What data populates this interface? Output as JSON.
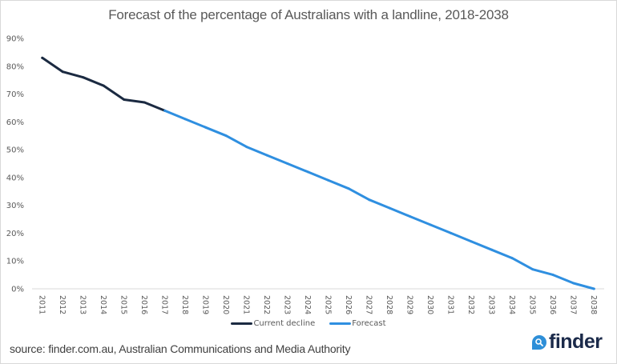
{
  "chart_data": {
    "type": "line",
    "title": "Forecast of the percentage of Australians with a landline, 2018-2038",
    "xlabel": "",
    "ylabel": "",
    "ylim": [
      0,
      90
    ],
    "yticks": [
      "0%",
      "10%",
      "20%",
      "30%",
      "40%",
      "50%",
      "60%",
      "70%",
      "80%",
      "90%"
    ],
    "ytick_values": [
      0,
      10,
      20,
      30,
      40,
      50,
      60,
      70,
      80,
      90
    ],
    "categories": [
      "2011",
      "2012",
      "2013",
      "2014",
      "2015",
      "2016",
      "2017",
      "2018",
      "2019",
      "2020",
      "2021",
      "2022",
      "2023",
      "2024",
      "2025",
      "2026",
      "2027",
      "2028",
      "2029",
      "2030",
      "2031",
      "2032",
      "2033",
      "2034",
      "2035",
      "2036",
      "2037",
      "2038"
    ],
    "grid": false,
    "legend_position": "bottom",
    "series": [
      {
        "name": "Current decline",
        "color": "#1b2a41",
        "x": [
          "2011",
          "2012",
          "2013",
          "2014",
          "2015",
          "2016",
          "2017"
        ],
        "values": [
          83,
          78,
          76,
          73,
          68,
          67,
          64
        ]
      },
      {
        "name": "Forecast",
        "color": "#2f8fe0",
        "x": [
          "2017",
          "2018",
          "2019",
          "2020",
          "2021",
          "2022",
          "2023",
          "2024",
          "2025",
          "2026",
          "2027",
          "2028",
          "2029",
          "2030",
          "2031",
          "2032",
          "2033",
          "2034",
          "2035",
          "2036",
          "2037",
          "2038"
        ],
        "values": [
          64,
          61,
          58,
          55,
          51,
          48,
          45,
          42,
          39,
          36,
          32,
          29,
          26,
          23,
          20,
          17,
          14,
          11,
          7,
          5,
          2,
          0
        ]
      }
    ]
  },
  "footer": {
    "source": "source: finder.com.au, Australian Communications and Media Authority",
    "logo_text": "finder",
    "logo_icon": "search-magnifier-icon",
    "brand_color": "#2e8fd8"
  }
}
